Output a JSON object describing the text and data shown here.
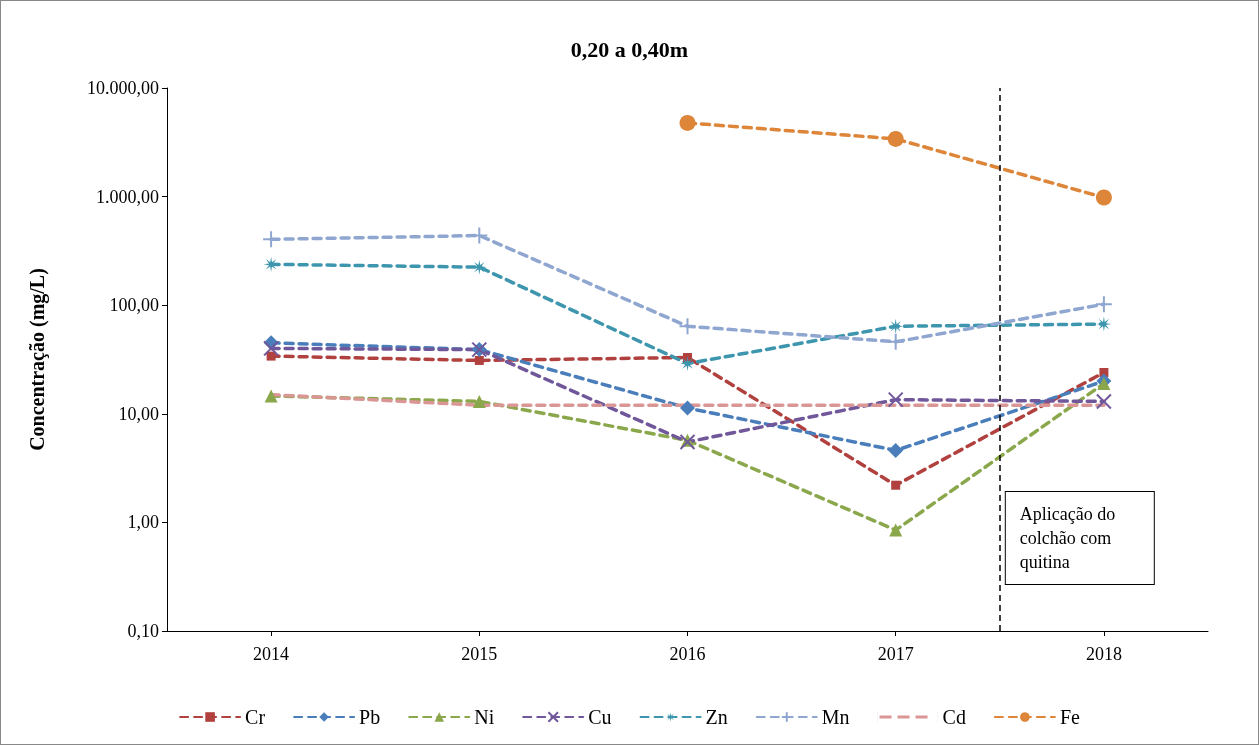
{
  "chart_data": {
    "type": "line",
    "title": "0,20 a 0,40m",
    "ylabel": "Concentração (mg/L)",
    "x": [
      2014,
      2015,
      2016,
      2017,
      2018
    ],
    "xlim": [
      2013.5,
      2018.5
    ],
    "xticks": [
      2014,
      2015,
      2016,
      2017,
      2018
    ],
    "log": true,
    "ylim": [
      0.1,
      10000
    ],
    "yticks": [
      {
        "value": 0.1,
        "label": "0,10"
      },
      {
        "value": 1,
        "label": "1,00"
      },
      {
        "value": 10,
        "label": "10,00"
      },
      {
        "value": 100,
        "label": "100,00"
      },
      {
        "value": 1000,
        "label": "1.000,00"
      },
      {
        "value": 10000,
        "label": "10.000,00"
      }
    ],
    "grid": false,
    "legend": "bottom",
    "line_style": "dashed",
    "series": [
      {
        "name": "Cr",
        "color": "#b0413e",
        "marker": "square",
        "values": [
          34,
          31,
          33,
          2.2,
          24
        ]
      },
      {
        "name": "Pb",
        "color": "#4a7ebb",
        "marker": "diamond",
        "values": [
          45,
          39,
          11.3,
          4.6,
          20
        ]
      },
      {
        "name": "Ni",
        "color": "#8aa84b",
        "marker": "triangle",
        "values": [
          14.6,
          13,
          5.7,
          0.85,
          19
        ]
      },
      {
        "name": "Cu",
        "color": "#70579a",
        "marker": "cross",
        "values": [
          40,
          39,
          5.5,
          13.5,
          13
        ]
      },
      {
        "name": "Zn",
        "color": "#3d96ae",
        "marker": "star",
        "values": [
          238,
          224,
          29,
          64,
          67
        ]
      },
      {
        "name": "Mn",
        "color": "#8fa6d0",
        "marker": "plus",
        "values": [
          404,
          438,
          64,
          46,
          102
        ]
      },
      {
        "name": "Cd",
        "color": "#d99694",
        "marker": "none",
        "values": [
          15,
          12,
          12,
          12,
          12
        ]
      },
      {
        "name": "Fe",
        "color": "#dd8538",
        "marker": "circle",
        "values": [
          null,
          null,
          4770,
          3400,
          980
        ]
      }
    ],
    "ref_lines": [
      {
        "axis": "x",
        "value": 2017.5,
        "label": "Aplicação do colchão com quitina",
        "color": "#000000",
        "line_style": "dashed"
      }
    ]
  }
}
